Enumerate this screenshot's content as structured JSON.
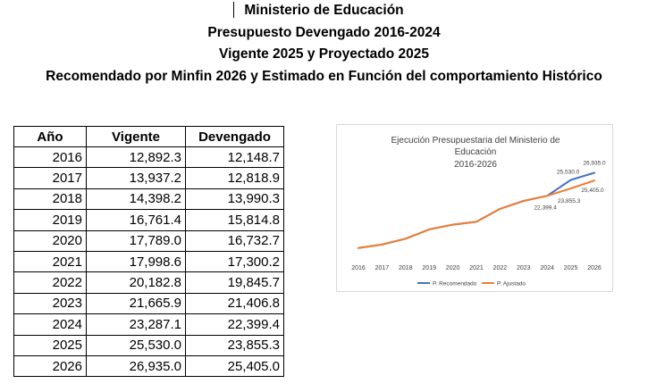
{
  "header": {
    "line1": "Ministerio de Educación",
    "line2": "Presupuesto Devengado 2016-2024",
    "line3": "Vigente 2025 y Proyectado 2025",
    "line4": "Recomendado por Minfin 2026 y Estimado en Función del comportamiento Histórico"
  },
  "table": {
    "headers": [
      "Año",
      "Vigente",
      "Devengado"
    ],
    "rows": [
      [
        "2016",
        "12,892.3",
        "12,148.7"
      ],
      [
        "2017",
        "13,937.2",
        "12,818.9"
      ],
      [
        "2018",
        "14,398.2",
        "13,990.3"
      ],
      [
        "2019",
        "16,761.4",
        "15,814.8"
      ],
      [
        "2020",
        "17,789.0",
        "16,732.7"
      ],
      [
        "2021",
        "17,998.6",
        "17,300.2"
      ],
      [
        "2022",
        "20,182.8",
        "19,845.7"
      ],
      [
        "2023",
        "21,665.9",
        "21,406.8"
      ],
      [
        "2024",
        "23,287.1",
        "22,399.4"
      ],
      [
        "2025",
        "25,530.0",
        "23,855.3"
      ],
      [
        "2026",
        "26,935.0",
        "25,405.0"
      ]
    ]
  },
  "chart_data": {
    "type": "line",
    "title": [
      "Ejecución Presupuestaria del Ministerio de",
      "Educación",
      "2016-2026"
    ],
    "categories": [
      "2016",
      "2017",
      "2018",
      "2019",
      "2020",
      "2021",
      "2022",
      "2023",
      "2024",
      "2025",
      "2026"
    ],
    "series": [
      {
        "name": "P. Recomendado",
        "color": "#4472c4",
        "values": [
          12148.7,
          12818.9,
          13990.3,
          15814.8,
          16732.7,
          17300.2,
          19845.7,
          21406.8,
          22399.4,
          25530.0,
          26935.0
        ]
      },
      {
        "name": "P. Ajustado",
        "color": "#ed7d31",
        "values": [
          12148.7,
          12818.9,
          13990.3,
          15814.8,
          16732.7,
          17300.2,
          19845.7,
          21406.8,
          22399.4,
          23855.3,
          25405.0
        ]
      }
    ],
    "annotations": [
      {
        "category": "2024",
        "series": "P. Ajustado",
        "label": "22,399.4"
      },
      {
        "category": "2025",
        "series": "P. Recomendado",
        "label": "25,530.0"
      },
      {
        "category": "2025",
        "series": "P. Ajustado",
        "label": "23,855.3"
      },
      {
        "category": "2026",
        "series": "P. Recomendado",
        "label": "26,935.0"
      },
      {
        "category": "2026",
        "series": "P. Ajustado",
        "label": "25,405.0"
      }
    ],
    "ylim": [
      10000,
      30000
    ],
    "grid": false,
    "legend": "bottom"
  }
}
